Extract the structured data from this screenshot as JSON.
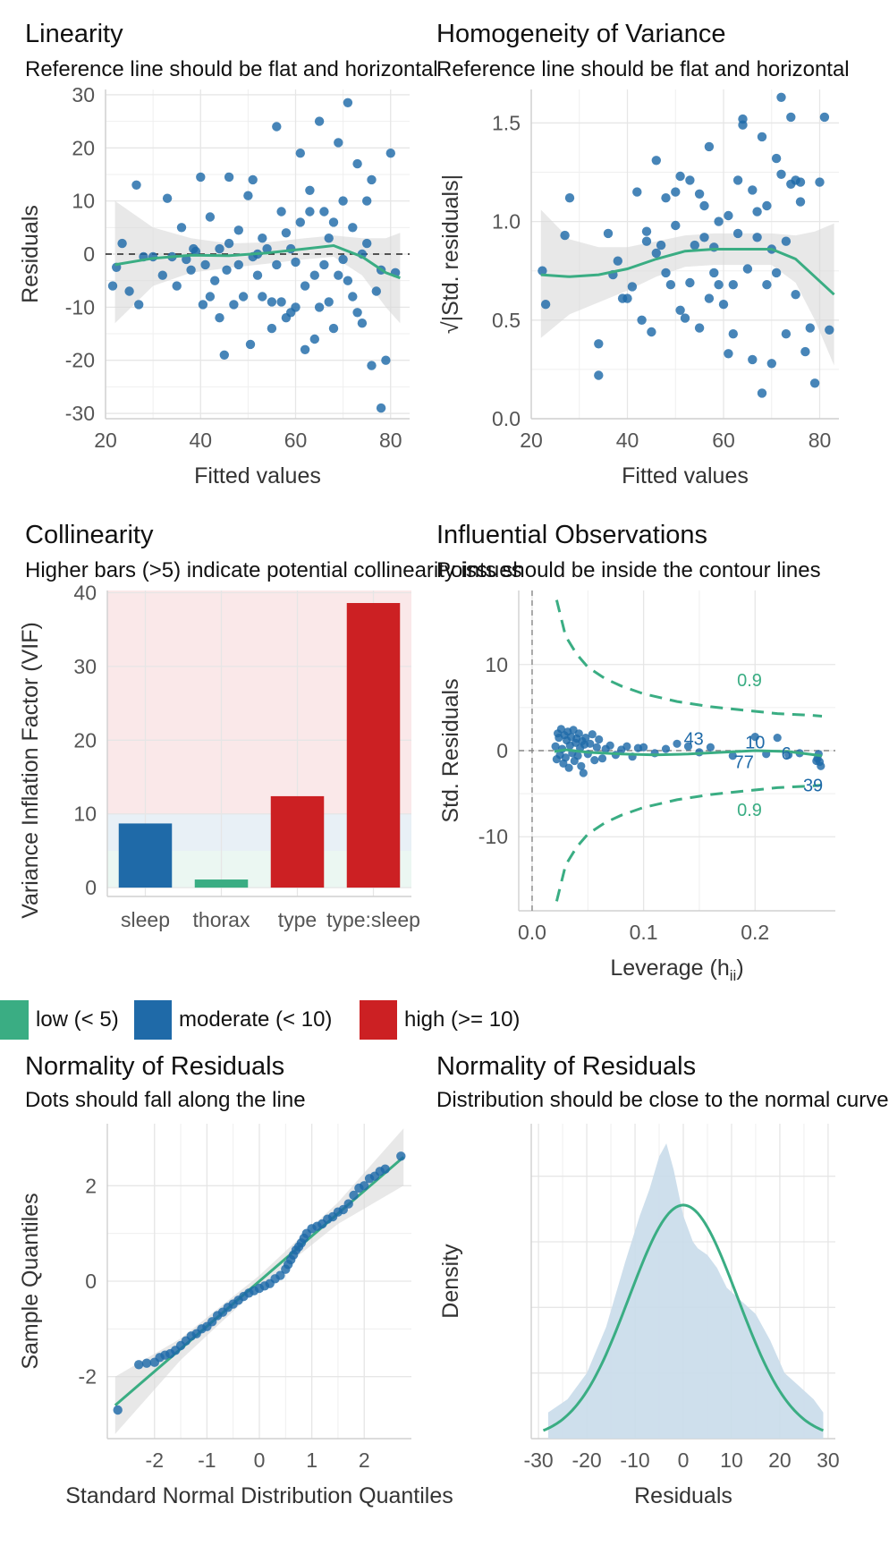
{
  "colors": {
    "blue": "#1f6aa8",
    "green": "#3aad83",
    "red": "#cc2023",
    "grid": "#e6e6e6",
    "ribbon": "#d9d9d9",
    "density_fill": "#c9dbea"
  },
  "panels": {
    "linearity": {
      "title": "Linearity",
      "subtitle": "Reference line should be flat and horizontal"
    },
    "homogeneity": {
      "title": "Homogeneity of Variance",
      "subtitle": "Reference line should be flat and horizontal"
    },
    "collinearity": {
      "title": "Collinearity",
      "subtitle": "Higher bars (>5) indicate potential collinearity issues"
    },
    "influential": {
      "title": "Influential Observations",
      "subtitle": "Points should be inside the contour lines"
    },
    "qq": {
      "title": "Normality of Residuals",
      "subtitle": "Dots should fall along the line"
    },
    "density": {
      "title": "Normality of Residuals",
      "subtitle": "Distribution should be close to the normal curve"
    }
  },
  "legend": {
    "items": [
      {
        "label": "low (< 5)",
        "color": "#3aad83"
      },
      {
        "label": "moderate (< 10)",
        "color": "#1f6aa8"
      },
      {
        "label": "high (>= 10)",
        "color": "#cc2023"
      }
    ]
  },
  "chart_data": [
    {
      "id": "linearity",
      "type": "scatter",
      "xlabel": "Fitted values",
      "ylabel": "Residuals",
      "xlim": [
        20,
        84
      ],
      "ylim": [
        -31,
        31
      ],
      "xticks": [
        20,
        40,
        60,
        80
      ],
      "yticks": [
        -30,
        -20,
        -10,
        0,
        10,
        20,
        30
      ],
      "reference_line": 0,
      "smooth": {
        "x": [
          22,
          30,
          38,
          46,
          54,
          62,
          68,
          74,
          79,
          82
        ],
        "y": [
          -2,
          -0.8,
          -0.2,
          -0.3,
          0.2,
          1.0,
          1.6,
          -0.5,
          -3.5,
          -4.5
        ]
      },
      "band": {
        "upper": [
          10,
          5,
          3,
          2,
          2.2,
          3,
          3.5,
          3,
          3,
          4
        ],
        "lower": [
          -13,
          -6,
          -3.5,
          -2.6,
          -1.8,
          -1,
          -0.5,
          -4,
          -10,
          -13
        ]
      },
      "points": {
        "x": [
          21.5,
          22.3,
          23.5,
          25,
          26.5,
          27,
          28,
          30,
          32,
          33,
          34,
          35,
          36,
          37,
          38,
          38.5,
          39,
          40,
          40.5,
          41,
          42,
          42,
          43,
          44,
          44,
          45,
          45.5,
          46,
          46,
          47,
          48,
          48,
          49,
          50,
          50.5,
          51,
          51,
          52,
          52,
          53,
          53,
          54,
          55,
          55,
          56,
          56,
          57,
          57,
          58,
          58,
          59,
          59,
          60,
          60,
          61,
          61,
          62,
          62,
          63,
          63,
          64,
          64,
          65,
          65,
          66,
          66,
          67,
          67,
          68,
          68,
          69,
          69,
          70,
          70,
          71,
          71,
          72,
          72,
          73,
          73,
          74,
          74,
          75,
          75,
          76,
          76,
          77,
          78,
          78,
          79,
          80,
          81
        ],
        "y": [
          -6,
          -2.5,
          2,
          -7,
          13,
          -9.5,
          -0.5,
          -0.5,
          -4,
          10.5,
          -0.5,
          -6,
          5,
          -1,
          -3,
          1,
          0.5,
          14.5,
          -9.5,
          -2,
          7,
          -8,
          -5,
          1,
          -12,
          -19,
          -3,
          14.5,
          2,
          -9.5,
          -2,
          4.5,
          -8,
          11,
          -17,
          14,
          -0.5,
          -4,
          0,
          3,
          -8,
          1,
          -9,
          -14,
          24,
          -2,
          -9,
          8,
          4,
          -12,
          1,
          -11,
          -10,
          -1.5,
          19,
          6,
          -18,
          -6,
          8,
          12,
          -16,
          -4,
          25,
          -10,
          8,
          -2,
          -9,
          3,
          -14,
          6,
          21,
          -4,
          10,
          -1,
          28.5,
          -5,
          5,
          -8,
          17,
          -11,
          0,
          -13,
          2,
          10,
          14,
          -21,
          -7,
          -29,
          -3,
          -20,
          19,
          -3.5
        ]
      }
    },
    {
      "id": "homogeneity",
      "type": "scatter",
      "xlabel": "Fitted values",
      "ylabel": "√|Std. residuals|",
      "xlim": [
        20,
        84
      ],
      "ylim": [
        0,
        1.67
      ],
      "xticks": [
        20,
        40,
        60,
        80
      ],
      "yticks": [
        0.0,
        0.5,
        1.0,
        1.5
      ],
      "ytick_labels": [
        "0.0",
        "0.5",
        "1.0",
        "1.5"
      ],
      "smooth": {
        "x": [
          22,
          28,
          34,
          40,
          46,
          52,
          58,
          64,
          70,
          75,
          79,
          83
        ],
        "y": [
          0.73,
          0.72,
          0.73,
          0.76,
          0.81,
          0.85,
          0.86,
          0.86,
          0.86,
          0.81,
          0.72,
          0.63
        ]
      },
      "band": {
        "upper": [
          1.06,
          0.91,
          0.87,
          0.87,
          0.9,
          0.93,
          0.94,
          0.94,
          0.94,
          0.93,
          0.95,
          0.99
        ],
        "lower": [
          0.41,
          0.53,
          0.59,
          0.65,
          0.72,
          0.77,
          0.78,
          0.78,
          0.78,
          0.69,
          0.5,
          0.27
        ]
      },
      "points": {
        "x": [
          22.3,
          23,
          27,
          28,
          34,
          34,
          36,
          37,
          38,
          39,
          40,
          41,
          42,
          43,
          44,
          44,
          45,
          46,
          46,
          47,
          48,
          48,
          49,
          50,
          50,
          51,
          51,
          52,
          53,
          53,
          54,
          55,
          55,
          56,
          56,
          57,
          57,
          58,
          58,
          59,
          59,
          60,
          61,
          61,
          62,
          62,
          63,
          63,
          64,
          64,
          65,
          66,
          66,
          67,
          67,
          68,
          68,
          69,
          69,
          70,
          70,
          71,
          71,
          72,
          72,
          73,
          73,
          74,
          74,
          75,
          75,
          76,
          76,
          77,
          78,
          79,
          80,
          81,
          82
        ],
        "y": [
          0.75,
          0.58,
          0.93,
          1.12,
          0.38,
          0.22,
          0.94,
          0.73,
          0.8,
          0.61,
          0.61,
          0.67,
          1.15,
          0.5,
          0.95,
          0.9,
          0.44,
          0.84,
          1.31,
          0.88,
          1.12,
          0.74,
          0.68,
          1.15,
          0.98,
          0.55,
          1.23,
          0.51,
          0.69,
          1.21,
          0.88,
          1.14,
          0.46,
          1.08,
          0.92,
          1.38,
          0.61,
          0.87,
          0.74,
          1.0,
          0.68,
          0.58,
          1.03,
          0.33,
          0.43,
          0.68,
          1.21,
          0.94,
          1.52,
          1.49,
          0.76,
          1.16,
          0.3,
          1.05,
          0.92,
          0.13,
          1.43,
          0.68,
          1.08,
          0.86,
          0.28,
          1.32,
          0.74,
          1.63,
          1.24,
          0.9,
          0.43,
          1.53,
          1.19,
          0.63,
          1.21,
          1.2,
          1.1,
          0.34,
          0.46,
          0.18,
          1.2,
          1.53,
          0.45
        ]
      }
    },
    {
      "id": "collinearity",
      "type": "bar",
      "xlabel": "",
      "ylabel": "Variance Inflation Factor (VIF)",
      "categories": [
        "sleep",
        "thorax",
        "type",
        "type:sleep"
      ],
      "values": [
        8.7,
        1.1,
        12.4,
        38.6
      ],
      "bar_colors": [
        "#1f6aa8",
        "#3aad83",
        "#cc2023",
        "#cc2023"
      ],
      "ylim": [
        -1.2,
        40.3
      ],
      "yticks": [
        0,
        10,
        20,
        30,
        40
      ],
      "zones": [
        {
          "from": 0,
          "to": 5,
          "color": "#3aad83"
        },
        {
          "from": 5,
          "to": 10,
          "color": "#1f6aa8"
        },
        {
          "from": 10,
          "to": 40.3,
          "color": "#cc2023"
        }
      ]
    },
    {
      "id": "influential",
      "type": "scatter",
      "xlabel": "Leverage (hii)",
      "ylabel": "Std. Residuals",
      "xlim": [
        -0.012,
        0.272
      ],
      "ylim": [
        -18.6,
        18.6
      ],
      "xticks": [
        0.0,
        0.1,
        0.2
      ],
      "xtick_labels": [
        "0.0",
        "0.1",
        "0.2"
      ],
      "yticks": [
        -10,
        0,
        10
      ],
      "vline": 0,
      "hline": 0,
      "contour_level": "0.9",
      "contour": {
        "x": [
          0.022,
          0.03,
          0.04,
          0.05,
          0.065,
          0.08,
          0.1,
          0.13,
          0.16,
          0.19,
          0.22,
          0.25,
          0.26
        ],
        "y": [
          17.5,
          13.3,
          11.2,
          9.7,
          8.4,
          7.5,
          6.6,
          5.7,
          5.1,
          4.7,
          4.3,
          4.1,
          4.0
        ]
      },
      "smooth": {
        "x": [
          0.02,
          0.03,
          0.05,
          0.08,
          0.11,
          0.14,
          0.17,
          0.2,
          0.23,
          0.26
        ],
        "y": [
          -0.1,
          0.1,
          -0.2,
          -0.4,
          -0.5,
          -0.4,
          -0.2,
          0.0,
          -0.1,
          -0.6
        ]
      },
      "points": {
        "x": [
          0.021,
          0.022,
          0.023,
          0.024,
          0.025,
          0.026,
          0.027,
          0.028,
          0.029,
          0.03,
          0.031,
          0.032,
          0.033,
          0.034,
          0.035,
          0.036,
          0.037,
          0.038,
          0.039,
          0.04,
          0.041,
          0.042,
          0.043,
          0.044,
          0.045,
          0.046,
          0.047,
          0.048,
          0.05,
          0.052,
          0.054,
          0.056,
          0.058,
          0.06,
          0.063,
          0.066,
          0.07,
          0.075,
          0.08,
          0.085,
          0.09,
          0.095,
          0.1,
          0.11,
          0.12,
          0.13,
          0.14,
          0.15,
          0.16,
          0.18,
          0.2,
          0.21,
          0.22,
          0.23,
          0.24,
          0.255,
          0.256,
          0.257,
          0.258,
          0.259
        ],
        "y": [
          0.5,
          -1,
          2,
          1.5,
          -0.5,
          2.5,
          0.2,
          -1.5,
          1.8,
          -0.8,
          1.2,
          2.2,
          -2,
          0.6,
          1.6,
          -0.3,
          2.4,
          -1.2,
          0.9,
          1.4,
          -0.6,
          2,
          0.3,
          -1.8,
          1.1,
          -2.6,
          0.7,
          1.5,
          -0.4,
          0.8,
          1.9,
          -1.1,
          0.4,
          1.3,
          -0.9,
          0.2,
          0.6,
          -0.5,
          0.1,
          0.5,
          -0.7,
          0.3,
          0.4,
          -0.3,
          0.2,
          0.8,
          0.5,
          -0.2,
          0.4,
          -0.6,
          1.6,
          -0.4,
          1.5,
          -0.5,
          -0.3,
          -1.2,
          -0.9,
          -0.4,
          -1.3,
          -1.8
        ]
      },
      "labels": [
        {
          "text": "43",
          "x": 0.145,
          "y": 1.4
        },
        {
          "text": "10",
          "x": 0.2,
          "y": 1.0
        },
        {
          "text": "77",
          "x": 0.19,
          "y": -1.3
        },
        {
          "text": "6",
          "x": 0.228,
          "y": -0.3
        },
        {
          "text": "39",
          "x": 0.252,
          "y": -4.0
        }
      ]
    },
    {
      "id": "qq",
      "type": "scatter",
      "xlabel": "Standard Normal Distribution Quantiles",
      "ylabel": "Sample Quantiles",
      "xlim": [
        -2.9,
        2.9
      ],
      "ylim": [
        -3.3,
        3.3
      ],
      "xticks": [
        -2,
        -1,
        0,
        1,
        2
      ],
      "yticks": [
        -2,
        0,
        2
      ],
      "line": {
        "x": [
          -2.75,
          2.75
        ],
        "y": [
          -2.6,
          2.6
        ]
      },
      "points_x_from": -2.7,
      "points_x_to": 2.7,
      "points": {
        "x": [
          -2.7,
          -2.3,
          -2.15,
          -2.0,
          -1.9,
          -1.8,
          -1.7,
          -1.6,
          -1.5,
          -1.4,
          -1.3,
          -1.2,
          -1.1,
          -1.0,
          -0.9,
          -0.8,
          -0.7,
          -0.6,
          -0.5,
          -0.4,
          -0.3,
          -0.2,
          -0.1,
          0.0,
          0.1,
          0.2,
          0.3,
          0.4,
          0.5,
          0.55,
          0.6,
          0.65,
          0.7,
          0.75,
          0.8,
          0.85,
          0.9,
          1.0,
          1.1,
          1.2,
          1.3,
          1.4,
          1.5,
          1.6,
          1.7,
          1.8,
          1.9,
          2.0,
          2.1,
          2.2,
          2.3,
          2.4,
          2.7
        ],
        "y": [
          -2.7,
          -1.75,
          -1.72,
          -1.7,
          -1.6,
          -1.55,
          -1.52,
          -1.45,
          -1.35,
          -1.25,
          -1.15,
          -1.1,
          -1.0,
          -0.95,
          -0.85,
          -0.72,
          -0.65,
          -0.55,
          -0.48,
          -0.4,
          -0.32,
          -0.25,
          -0.2,
          -0.15,
          -0.1,
          -0.05,
          0.05,
          0.12,
          0.25,
          0.35,
          0.45,
          0.55,
          0.65,
          0.72,
          0.8,
          0.9,
          1.0,
          1.1,
          1.15,
          1.2,
          1.3,
          1.35,
          1.45,
          1.5,
          1.62,
          1.8,
          1.95,
          2.0,
          2.15,
          2.2,
          2.3,
          2.35,
          2.62
        ]
      }
    },
    {
      "id": "density",
      "type": "area",
      "xlabel": "Residuals",
      "ylabel": "Density",
      "xlim": [
        -31.5,
        31.5
      ],
      "ylim": [
        0,
        0.048
      ],
      "xticks": [
        -30,
        -20,
        -10,
        0,
        10,
        20,
        30
      ],
      "density": {
        "x": [
          -28,
          -24,
          -20,
          -16,
          -12,
          -9,
          -7,
          -5,
          -3.5,
          -2,
          0,
          2,
          3,
          5,
          7,
          9,
          12,
          15,
          18,
          21,
          24,
          27,
          29
        ],
        "y": [
          0.004,
          0.006,
          0.01,
          0.017,
          0.027,
          0.034,
          0.038,
          0.043,
          0.045,
          0.041,
          0.034,
          0.03,
          0.029,
          0.028,
          0.026,
          0.023,
          0.021,
          0.019,
          0.015,
          0.01,
          0.008,
          0.006,
          0.004
        ]
      },
      "normal_curve": {
        "mean": 0,
        "sd": 11.2,
        "peak": 0.0356,
        "from": -29,
        "to": 29
      }
    }
  ]
}
